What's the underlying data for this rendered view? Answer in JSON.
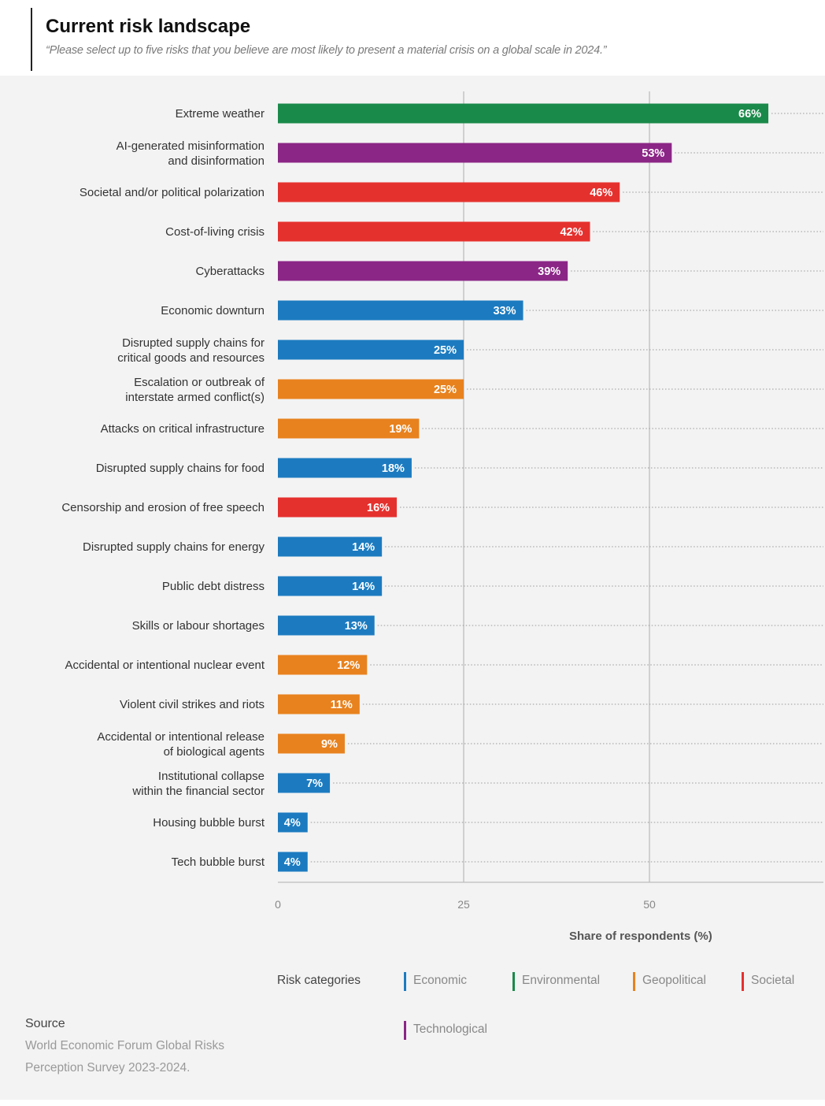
{
  "header": {
    "title": "Current risk landscape",
    "subtitle": "“Please select up to five risks that you believe are most likely to present a material crisis on a global scale in 2024.”"
  },
  "colors": {
    "Economic": "#1c7bc0",
    "Environmental": "#1a8a4a",
    "Geopolitical": "#e8821e",
    "Societal": "#e5312e",
    "Technological": "#8b2686"
  },
  "chart_data": {
    "type": "bar",
    "orientation": "horizontal",
    "xlabel": "Share of respondents (%)",
    "xlim": [
      0,
      66
    ],
    "xticks": [
      0,
      25,
      50
    ],
    "grid": true,
    "categories": [
      [
        "Extreme weather"
      ],
      [
        "AI-generated misinformation",
        "and disinformation"
      ],
      [
        "Societal and/or political polarization"
      ],
      [
        "Cost-of-living crisis"
      ],
      [
        "Cyberattacks"
      ],
      [
        "Economic downturn"
      ],
      [
        "Disrupted supply chains for",
        "critical goods and resources"
      ],
      [
        "Escalation or outbreak of",
        "interstate armed conflict(s)"
      ],
      [
        "Attacks on critical infrastructure"
      ],
      [
        "Disrupted supply chains for food"
      ],
      [
        "Censorship and erosion of free speech"
      ],
      [
        "Disrupted supply chains for energy"
      ],
      [
        "Public debt distress"
      ],
      [
        "Skills or labour shortages"
      ],
      [
        "Accidental or intentional nuclear event"
      ],
      [
        "Violent civil strikes and riots"
      ],
      [
        "Accidental or intentional release",
        "of biological agents"
      ],
      [
        "Institutional collapse",
        "within the financial sector"
      ],
      [
        "Housing bubble burst"
      ],
      [
        "Tech bubble burst"
      ]
    ],
    "values": [
      66,
      53,
      46,
      42,
      39,
      33,
      25,
      25,
      19,
      18,
      16,
      14,
      14,
      13,
      12,
      11,
      9,
      7,
      4,
      4
    ],
    "value_labels": [
      "66%",
      "53%",
      "46%",
      "42%",
      "39%",
      "33%",
      "25%",
      "25%",
      "19%",
      "18%",
      "16%",
      "14%",
      "14%",
      "13%",
      "12%",
      "11%",
      "9%",
      "7%",
      "4%",
      "4%"
    ],
    "bar_categories": [
      "Environmental",
      "Technological",
      "Societal",
      "Societal",
      "Technological",
      "Economic",
      "Economic",
      "Geopolitical",
      "Geopolitical",
      "Economic",
      "Societal",
      "Economic",
      "Economic",
      "Economic",
      "Geopolitical",
      "Geopolitical",
      "Geopolitical",
      "Economic",
      "Economic",
      "Economic"
    ]
  },
  "legend": {
    "title": "Risk categories",
    "items": [
      "Economic",
      "Environmental",
      "Geopolitical",
      "Societal",
      "Technological"
    ]
  },
  "source": {
    "title": "Source",
    "line1": "World Economic Forum Global Risks",
    "line2": "Perception Survey 2023-2024."
  }
}
